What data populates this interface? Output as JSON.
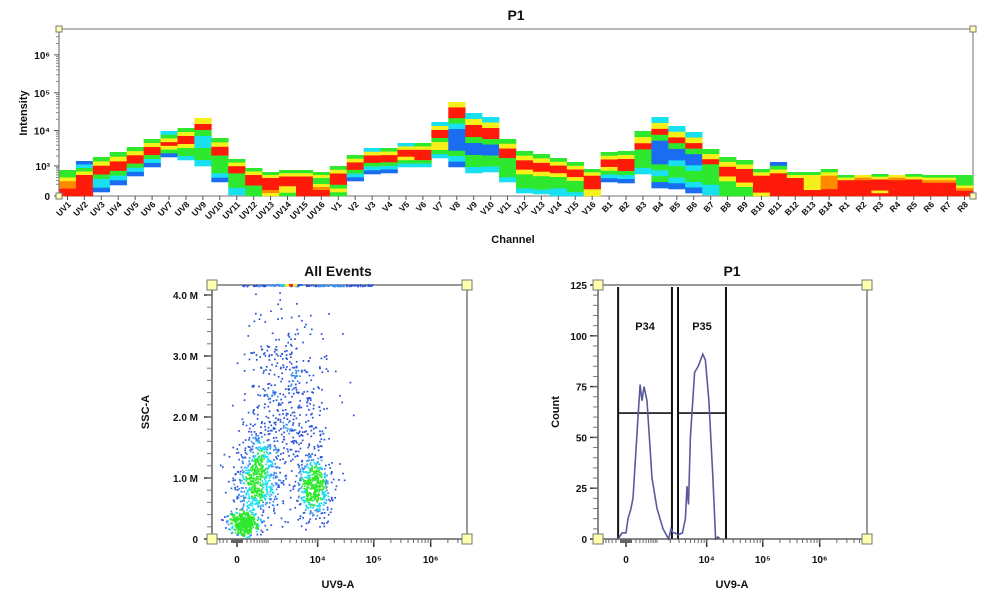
{
  "colors": {
    "b": "#1a6cf0",
    "c": "#19e0f0",
    "g": "#2ee82e",
    "y": "#f5f01a",
    "o": "#ff8a00",
    "r": "#ff1a0a",
    "handle": "#ffffb0",
    "histogram_line": "#5a5a9a",
    "axis": "#777777"
  },
  "chart_data": [
    {
      "type": "heatmap",
      "title": "P1",
      "xlabel": "Channel",
      "ylabel": "Intensity",
      "yscale": "biexponential",
      "yticks": [
        {
          "value": 0,
          "label": "0"
        },
        {
          "value": 1000,
          "label": "10³"
        },
        {
          "value": 10000,
          "label": "10⁴"
        },
        {
          "value": 100000,
          "label": "10⁵"
        },
        {
          "value": 1000000,
          "label": "10⁶"
        }
      ],
      "band_legend": "colour letters top-to-bottom: b=blue c=cyan g=green y=yellow o=orange r=red (red = highest density)",
      "channels": [
        {
          "name": "UV1",
          "low": 0,
          "high": 740,
          "bands": "ggyoorr"
        },
        {
          "name": "UV2",
          "low": 0,
          "high": 1417,
          "bands": "bcgyrrrrrr"
        },
        {
          "name": "UV3",
          "low": 53,
          "high": 1857,
          "bands": "gyrrgccb"
        },
        {
          "name": "UV4",
          "low": 183,
          "high": 2583,
          "bands": "gyrrgcb"
        },
        {
          "name": "UV5",
          "low": 456,
          "high": 3565,
          "bands": "gyrrgcb"
        },
        {
          "name": "UV6",
          "low": 926,
          "high": 5910,
          "bands": "gyrrgcb"
        },
        {
          "name": "UV7",
          "low": 1857,
          "high": 9730,
          "bands": "cgyrygb"
        },
        {
          "name": "UV8",
          "low": 1517,
          "high": 11680,
          "bands": "gyrryggc"
        },
        {
          "name": "UV9",
          "low": 994,
          "high": 21600,
          "bands": "yrgccggc"
        },
        {
          "name": "UV10",
          "low": 258,
          "high": 6290,
          "bands": "gyrrggggcb"
        },
        {
          "name": "UV11",
          "low": 12,
          "high": 1623,
          "bands": "gyrrggggcc"
        },
        {
          "name": "UV12",
          "low": 0,
          "high": 860,
          "bands": "gyrrrggg"
        },
        {
          "name": "UV13",
          "low": 0,
          "high": 633,
          "bands": "gyrrrroy"
        },
        {
          "name": "UV14",
          "low": 0,
          "high": 740,
          "bands": "gyrrryyg"
        },
        {
          "name": "UV15",
          "low": 0,
          "high": 740,
          "bands": "gyrrrrrr"
        },
        {
          "name": "UV16",
          "low": 0,
          "high": 633,
          "bands": "gyggyorr"
        },
        {
          "name": "V1",
          "low": 0,
          "high": 994,
          "bands": "gyrrrgyg"
        },
        {
          "name": "V2",
          "low": 286,
          "high": 2120,
          "bands": "gyrrgcb"
        },
        {
          "name": "V3",
          "low": 539,
          "high": 3340,
          "bands": "cyrrgcb"
        },
        {
          "name": "V4",
          "low": 585,
          "high": 3340,
          "bands": "gyrrgcb"
        },
        {
          "name": "V5",
          "low": 926,
          "high": 4600,
          "bands": "cyrrygc"
        },
        {
          "name": "V6",
          "low": 926,
          "high": 4600,
          "bands": "gyrrrgc"
        },
        {
          "name": "V7",
          "low": 1737,
          "high": 16900,
          "bands": "cyrrgyygc"
        },
        {
          "name": "V8",
          "low": 926,
          "high": 57300,
          "bands": "yrrgcbbbbgcb"
        },
        {
          "name": "V9",
          "low": 585,
          "high": 29300,
          "bands": "cyrrgbbggc"
        },
        {
          "name": "V10",
          "low": 633,
          "high": 22900,
          "bands": "cyrrgbbggc"
        },
        {
          "name": "V11",
          "low": 258,
          "high": 5910,
          "bands": "gyrrggggc"
        },
        {
          "name": "V12",
          "low": 38,
          "high": 2760,
          "bands": "gyrrygggc"
        },
        {
          "name": "V13",
          "low": 25,
          "high": 2270,
          "bands": "gyrrygggc"
        },
        {
          "name": "V14",
          "low": 0,
          "high": 1737,
          "bands": "gyrrygggcc"
        },
        {
          "name": "V15",
          "low": 0,
          "high": 1322,
          "bands": "gyrrygggc"
        },
        {
          "name": "V16",
          "low": 0,
          "high": 799,
          "bands": "gyrrrryy"
        },
        {
          "name": "B1",
          "low": 258,
          "high": 2583,
          "bands": "gyrrygcb"
        },
        {
          "name": "B2",
          "low": 231,
          "high": 2760,
          "bands": "gyrrrgcb"
        },
        {
          "name": "B3",
          "low": 539,
          "high": 9730,
          "bands": "gyrgggc"
        },
        {
          "name": "B4",
          "low": 120,
          "high": 22900,
          "bands": "cyrgbbbbgcgb"
        },
        {
          "name": "B5",
          "low": 102,
          "high": 13200,
          "bands": "cyrgbbcggcb"
        },
        {
          "name": "B6",
          "low": 38,
          "high": 9130,
          "bands": "cyrgbbcggcb"
        },
        {
          "name": "B7",
          "low": 12,
          "high": 3140,
          "bands": "gyrggggcc"
        },
        {
          "name": "B8",
          "low": 0,
          "high": 1857,
          "bands": "gyrryggg"
        },
        {
          "name": "B9",
          "low": 0,
          "high": 1517,
          "bands": "gyrrrygg"
        },
        {
          "name": "B10",
          "low": 0,
          "high": 799,
          "bands": "gyrrrrry"
        },
        {
          "name": "B11",
          "low": 0,
          "high": 1322,
          "bands": "bgyrrrrrr"
        },
        {
          "name": "B12",
          "low": 0,
          "high": 633,
          "bands": "gyrrrrrr"
        },
        {
          "name": "B13",
          "low": 0,
          "high": 633,
          "bands": "gyyyyyrr"
        },
        {
          "name": "B14",
          "low": 0,
          "high": 799,
          "bands": "gyoooorr"
        },
        {
          "name": "R1",
          "low": 0,
          "high": 497,
          "bands": "gyrrrrrr"
        },
        {
          "name": "R2",
          "low": 0,
          "high": 497,
          "bands": "yorrrrrr"
        },
        {
          "name": "R3",
          "low": 0,
          "high": 540,
          "bands": "gyrrrryr"
        },
        {
          "name": "R4",
          "low": 0,
          "high": 497,
          "bands": "yorrrrrr"
        },
        {
          "name": "R5",
          "low": 0,
          "high": 540,
          "bands": "gyrrrrrr"
        },
        {
          "name": "R6",
          "low": 0,
          "high": 497,
          "bands": "gyorrrrr"
        },
        {
          "name": "R7",
          "low": 0,
          "high": 497,
          "bands": "gyorrrrr"
        },
        {
          "name": "R8",
          "low": 0,
          "high": 497,
          "bands": "ggggyorr"
        }
      ]
    },
    {
      "type": "scatter",
      "title": "All Events",
      "xlabel": "UV9-A",
      "ylabel": "SSC-A",
      "xscale": "biexponential",
      "xticks": [
        {
          "value": 0,
          "label": "0"
        },
        {
          "value": 10000,
          "label": "10⁴"
        },
        {
          "value": 100000,
          "label": "10⁵"
        },
        {
          "value": 1000000,
          "label": "10⁶"
        }
      ],
      "yticks": [
        {
          "value": 0,
          "label": "0"
        },
        {
          "value": 1000000,
          "label": "1.0 M"
        },
        {
          "value": 2000000,
          "label": "2.0 M"
        },
        {
          "value": 3000000,
          "label": "3.0 M"
        },
        {
          "value": 4000000,
          "label": "4.0 M"
        }
      ],
      "ylim": [
        0,
        4180000
      ],
      "populations": [
        {
          "center": [
            110,
            250000
          ],
          "x": [
            -150,
            500
          ],
          "y": [
            50000,
            450000
          ],
          "n": 420
        },
        {
          "center": [
            500,
            1000000
          ],
          "x": [
            60,
            2500
          ],
          "y": [
            300000,
            1900000
          ],
          "n": 650
        },
        {
          "center": [
            9000,
            850000
          ],
          "x": [
            4000,
            17000
          ],
          "y": [
            450000,
            1500000
          ],
          "n": 480
        },
        {
          "center": [
            2500,
            2200000
          ],
          "x": [
            300,
            20000
          ],
          "y": [
            900000,
            4000000
          ],
          "n": 520
        },
        {
          "center": [
            2000,
            4180000
          ],
          "x": [
            100,
            100000
          ],
          "y": [
            4180000,
            4180000
          ],
          "n": 160
        }
      ]
    },
    {
      "type": "line",
      "title": "P1",
      "xlabel": "UV9-A",
      "ylabel": "Count",
      "xscale": "biexponential",
      "xticks": [
        {
          "value": 0,
          "label": "0"
        },
        {
          "value": 10000,
          "label": "10⁴"
        },
        {
          "value": 100000,
          "label": "10⁵"
        },
        {
          "value": 1000000,
          "label": "10⁶"
        }
      ],
      "yticks": [
        {
          "value": 0,
          "label": "0"
        },
        {
          "value": 25,
          "label": "25"
        },
        {
          "value": 50,
          "label": "50"
        },
        {
          "value": 75,
          "label": "75"
        },
        {
          "value": 100,
          "label": "100"
        },
        {
          "value": 125,
          "label": "125"
        }
      ],
      "ylim": [
        0,
        125
      ],
      "series": [
        {
          "x": [
            -150,
            -70,
            0,
            33,
            80,
            130,
            224,
            306,
            364,
            429,
            534,
            742,
            1000,
            1380,
            1840,
            2060,
            2270,
            2500,
            2900,
            3500,
            4000,
            4300,
            4600,
            5000,
            6000,
            7000,
            8500,
            9500,
            11000,
            13000,
            14500,
            16000,
            17500
          ],
          "y": [
            0,
            3,
            3,
            10,
            14,
            20,
            52,
            76,
            68,
            75,
            68,
            30,
            15,
            5,
            0,
            5,
            3,
            3,
            2,
            3,
            10,
            26,
            17,
            50,
            82,
            85,
            91,
            88,
            68,
            30,
            0,
            1,
            0
          ]
        }
      ],
      "gates": [
        {
          "label": "P34",
          "x": [
            -150,
            2160
          ],
          "level": 62
        },
        {
          "label": "P35",
          "x": [
            2870,
            22300
          ],
          "level": 62
        }
      ]
    }
  ]
}
